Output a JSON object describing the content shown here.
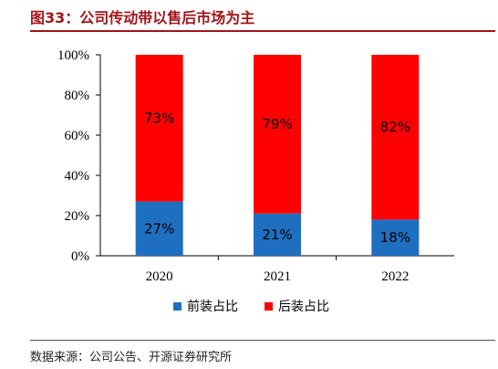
{
  "title": "图33：公司传动带以售后市场为主",
  "source": "数据来源：公司公告、开源证券研究所",
  "chart_data": {
    "type": "bar",
    "stacked": true,
    "categories": [
      "2020",
      "2021",
      "2022"
    ],
    "series": [
      {
        "name": "前装占比",
        "values": [
          27,
          21,
          18
        ],
        "labels": [
          "27%",
          "21%",
          "18%"
        ],
        "color": "#1f6fc1"
      },
      {
        "name": "后装占比",
        "values": [
          73,
          79,
          82
        ],
        "labels": [
          "73%",
          "79%",
          "82%"
        ],
        "color": "#ff0000"
      }
    ],
    "ylim": [
      0,
      100
    ],
    "yticks": [
      "0%",
      "20%",
      "40%",
      "60%",
      "80%",
      "100%"
    ],
    "xlabel": "",
    "ylabel": "",
    "grid": false,
    "legend_position": "bottom"
  }
}
